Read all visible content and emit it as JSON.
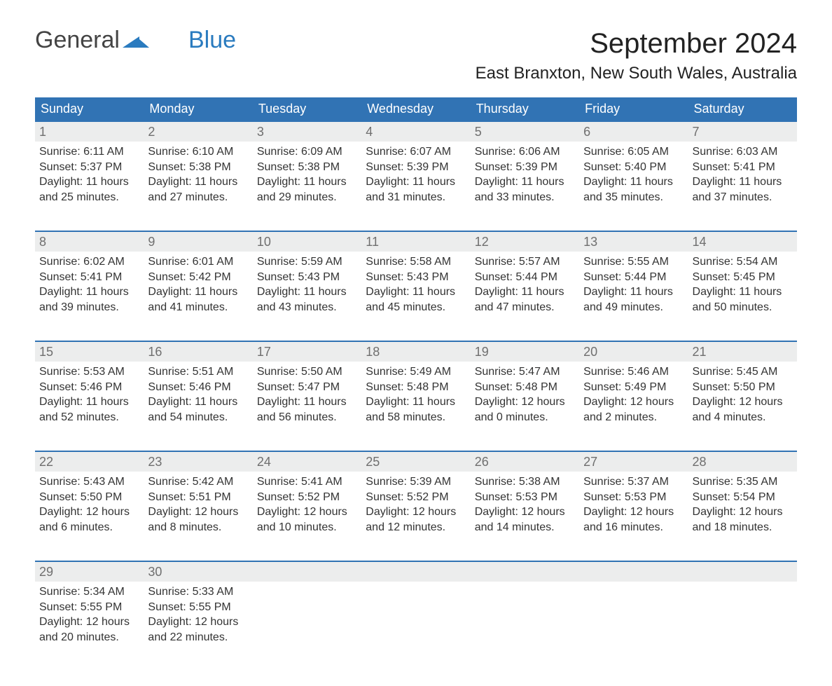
{
  "logo": {
    "text1": "General",
    "text2": "Blue",
    "mark_color": "#2a7bbf"
  },
  "title": "September 2024",
  "location": "East Branxton, New South Wales, Australia",
  "colors": {
    "header_bg": "#3173b4",
    "header_text": "#ffffff",
    "daynum_bg": "#eceded",
    "daynum_border": "#3173b4",
    "daynum_text": "#6f6f6f",
    "body_text": "#333333",
    "page_bg": "#ffffff"
  },
  "typography": {
    "title_fontsize": 40,
    "location_fontsize": 24,
    "header_fontsize": 18,
    "daynum_fontsize": 18,
    "cell_fontsize": 16,
    "font_family": "Arial"
  },
  "layout": {
    "columns": 7,
    "rows": 5,
    "daynum_row_height": 24,
    "data_row_height": 95
  },
  "headers": [
    "Sunday",
    "Monday",
    "Tuesday",
    "Wednesday",
    "Thursday",
    "Friday",
    "Saturday"
  ],
  "weeks": [
    [
      {
        "day": "1",
        "sunrise": "Sunrise: 6:11 AM",
        "sunset": "Sunset: 5:37 PM",
        "dl1": "Daylight: 11 hours",
        "dl2": "and 25 minutes."
      },
      {
        "day": "2",
        "sunrise": "Sunrise: 6:10 AM",
        "sunset": "Sunset: 5:38 PM",
        "dl1": "Daylight: 11 hours",
        "dl2": "and 27 minutes."
      },
      {
        "day": "3",
        "sunrise": "Sunrise: 6:09 AM",
        "sunset": "Sunset: 5:38 PM",
        "dl1": "Daylight: 11 hours",
        "dl2": "and 29 minutes."
      },
      {
        "day": "4",
        "sunrise": "Sunrise: 6:07 AM",
        "sunset": "Sunset: 5:39 PM",
        "dl1": "Daylight: 11 hours",
        "dl2": "and 31 minutes."
      },
      {
        "day": "5",
        "sunrise": "Sunrise: 6:06 AM",
        "sunset": "Sunset: 5:39 PM",
        "dl1": "Daylight: 11 hours",
        "dl2": "and 33 minutes."
      },
      {
        "day": "6",
        "sunrise": "Sunrise: 6:05 AM",
        "sunset": "Sunset: 5:40 PM",
        "dl1": "Daylight: 11 hours",
        "dl2": "and 35 minutes."
      },
      {
        "day": "7",
        "sunrise": "Sunrise: 6:03 AM",
        "sunset": "Sunset: 5:41 PM",
        "dl1": "Daylight: 11 hours",
        "dl2": "and 37 minutes."
      }
    ],
    [
      {
        "day": "8",
        "sunrise": "Sunrise: 6:02 AM",
        "sunset": "Sunset: 5:41 PM",
        "dl1": "Daylight: 11 hours",
        "dl2": "and 39 minutes."
      },
      {
        "day": "9",
        "sunrise": "Sunrise: 6:01 AM",
        "sunset": "Sunset: 5:42 PM",
        "dl1": "Daylight: 11 hours",
        "dl2": "and 41 minutes."
      },
      {
        "day": "10",
        "sunrise": "Sunrise: 5:59 AM",
        "sunset": "Sunset: 5:43 PM",
        "dl1": "Daylight: 11 hours",
        "dl2": "and 43 minutes."
      },
      {
        "day": "11",
        "sunrise": "Sunrise: 5:58 AM",
        "sunset": "Sunset: 5:43 PM",
        "dl1": "Daylight: 11 hours",
        "dl2": "and 45 minutes."
      },
      {
        "day": "12",
        "sunrise": "Sunrise: 5:57 AM",
        "sunset": "Sunset: 5:44 PM",
        "dl1": "Daylight: 11 hours",
        "dl2": "and 47 minutes."
      },
      {
        "day": "13",
        "sunrise": "Sunrise: 5:55 AM",
        "sunset": "Sunset: 5:44 PM",
        "dl1": "Daylight: 11 hours",
        "dl2": "and 49 minutes."
      },
      {
        "day": "14",
        "sunrise": "Sunrise: 5:54 AM",
        "sunset": "Sunset: 5:45 PM",
        "dl1": "Daylight: 11 hours",
        "dl2": "and 50 minutes."
      }
    ],
    [
      {
        "day": "15",
        "sunrise": "Sunrise: 5:53 AM",
        "sunset": "Sunset: 5:46 PM",
        "dl1": "Daylight: 11 hours",
        "dl2": "and 52 minutes."
      },
      {
        "day": "16",
        "sunrise": "Sunrise: 5:51 AM",
        "sunset": "Sunset: 5:46 PM",
        "dl1": "Daylight: 11 hours",
        "dl2": "and 54 minutes."
      },
      {
        "day": "17",
        "sunrise": "Sunrise: 5:50 AM",
        "sunset": "Sunset: 5:47 PM",
        "dl1": "Daylight: 11 hours",
        "dl2": "and 56 minutes."
      },
      {
        "day": "18",
        "sunrise": "Sunrise: 5:49 AM",
        "sunset": "Sunset: 5:48 PM",
        "dl1": "Daylight: 11 hours",
        "dl2": "and 58 minutes."
      },
      {
        "day": "19",
        "sunrise": "Sunrise: 5:47 AM",
        "sunset": "Sunset: 5:48 PM",
        "dl1": "Daylight: 12 hours",
        "dl2": "and 0 minutes."
      },
      {
        "day": "20",
        "sunrise": "Sunrise: 5:46 AM",
        "sunset": "Sunset: 5:49 PM",
        "dl1": "Daylight: 12 hours",
        "dl2": "and 2 minutes."
      },
      {
        "day": "21",
        "sunrise": "Sunrise: 5:45 AM",
        "sunset": "Sunset: 5:50 PM",
        "dl1": "Daylight: 12 hours",
        "dl2": "and 4 minutes."
      }
    ],
    [
      {
        "day": "22",
        "sunrise": "Sunrise: 5:43 AM",
        "sunset": "Sunset: 5:50 PM",
        "dl1": "Daylight: 12 hours",
        "dl2": "and 6 minutes."
      },
      {
        "day": "23",
        "sunrise": "Sunrise: 5:42 AM",
        "sunset": "Sunset: 5:51 PM",
        "dl1": "Daylight: 12 hours",
        "dl2": "and 8 minutes."
      },
      {
        "day": "24",
        "sunrise": "Sunrise: 5:41 AM",
        "sunset": "Sunset: 5:52 PM",
        "dl1": "Daylight: 12 hours",
        "dl2": "and 10 minutes."
      },
      {
        "day": "25",
        "sunrise": "Sunrise: 5:39 AM",
        "sunset": "Sunset: 5:52 PM",
        "dl1": "Daylight: 12 hours",
        "dl2": "and 12 minutes."
      },
      {
        "day": "26",
        "sunrise": "Sunrise: 5:38 AM",
        "sunset": "Sunset: 5:53 PM",
        "dl1": "Daylight: 12 hours",
        "dl2": "and 14 minutes."
      },
      {
        "day": "27",
        "sunrise": "Sunrise: 5:37 AM",
        "sunset": "Sunset: 5:53 PM",
        "dl1": "Daylight: 12 hours",
        "dl2": "and 16 minutes."
      },
      {
        "day": "28",
        "sunrise": "Sunrise: 5:35 AM",
        "sunset": "Sunset: 5:54 PM",
        "dl1": "Daylight: 12 hours",
        "dl2": "and 18 minutes."
      }
    ],
    [
      {
        "day": "29",
        "sunrise": "Sunrise: 5:34 AM",
        "sunset": "Sunset: 5:55 PM",
        "dl1": "Daylight: 12 hours",
        "dl2": "and 20 minutes."
      },
      {
        "day": "30",
        "sunrise": "Sunrise: 5:33 AM",
        "sunset": "Sunset: 5:55 PM",
        "dl1": "Daylight: 12 hours",
        "dl2": "and 22 minutes."
      },
      null,
      null,
      null,
      null,
      null
    ]
  ]
}
